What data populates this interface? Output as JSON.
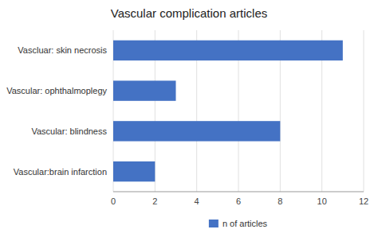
{
  "chart_data": {
    "type": "bar",
    "orientation": "horizontal",
    "title": "Vascular complication articles",
    "categories": [
      "Vascular:brain infarction",
      "Vascular: blindness",
      "Vascular: ophthalmoplegy",
      "Vascluar: skin necrosis"
    ],
    "series": [
      {
        "name": "n of articles",
        "color": "#4472C4",
        "values": [
          2,
          8,
          3,
          11
        ]
      }
    ],
    "xlim": [
      0,
      12
    ],
    "xticks": [
      0,
      2,
      4,
      6,
      8,
      10,
      12
    ],
    "grid": true,
    "legend": "bottom"
  }
}
